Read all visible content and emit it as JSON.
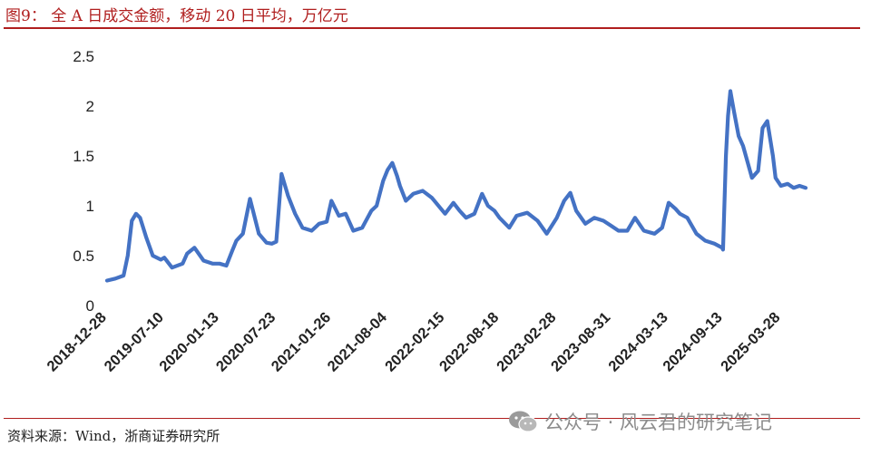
{
  "header": {
    "title": "图9：  全 A 日成交金额，移动 20 日平均，万亿元"
  },
  "footer": {
    "source": "资料来源：Wind，浙商证券研究所"
  },
  "watermark": {
    "text": "公众号 · 风云君的研究笔记",
    "icon": "wechat-icon"
  },
  "colors": {
    "accent": "#b01e1e",
    "line": "#4472c4"
  },
  "chart_data": {
    "type": "line",
    "title": "全 A 日成交金额，移动 20 日平均，万亿元",
    "xlabel": "",
    "ylabel": "",
    "ylim": [
      0,
      2.5
    ],
    "yticks": [
      0,
      0.5,
      1,
      1.5,
      2,
      2.5
    ],
    "grid": false,
    "legend": "none",
    "xticks": [
      "2018-12-28",
      "2019-07-10",
      "2020-01-13",
      "2020-07-23",
      "2021-01-26",
      "2021-08-04",
      "2022-02-15",
      "2022-08-18",
      "2023-02-28",
      "2023-08-31",
      "2024-03-13",
      "2024-09-13",
      "2025-03-28"
    ],
    "series": [
      {
        "name": "",
        "x": [
          "2018-12-28",
          "2019-01-25",
          "2019-02-22",
          "2019-03-08",
          "2019-03-22",
          "2019-04-05",
          "2019-04-19",
          "2019-05-10",
          "2019-06-01",
          "2019-06-28",
          "2019-07-10",
          "2019-08-05",
          "2019-09-10",
          "2019-09-25",
          "2019-10-20",
          "2019-11-20",
          "2019-12-20",
          "2020-01-13",
          "2020-02-05",
          "2020-02-25",
          "2020-03-10",
          "2020-04-01",
          "2020-04-25",
          "2020-05-25",
          "2020-06-20",
          "2020-07-08",
          "2020-07-23",
          "2020-08-10",
          "2020-09-01",
          "2020-09-25",
          "2020-10-20",
          "2020-11-20",
          "2020-12-15",
          "2021-01-10",
          "2021-01-26",
          "2021-02-20",
          "2021-03-15",
          "2021-04-10",
          "2021-05-10",
          "2021-06-10",
          "2021-06-28",
          "2021-07-20",
          "2021-08-04",
          "2021-08-20",
          "2021-09-05",
          "2021-09-15",
          "2021-10-05",
          "2021-10-30",
          "2021-12-01",
          "2022-01-01",
          "2022-02-15",
          "2022-03-15",
          "2022-04-05",
          "2022-04-27",
          "2022-05-25",
          "2022-06-20",
          "2022-07-10",
          "2022-08-01",
          "2022-08-18",
          "2022-09-20",
          "2022-10-15",
          "2022-11-20",
          "2022-12-25",
          "2023-01-25",
          "2023-02-28",
          "2023-03-25",
          "2023-04-15",
          "2023-05-05",
          "2023-06-05",
          "2023-07-05",
          "2023-08-05",
          "2023-08-31",
          "2023-09-25",
          "2023-10-25",
          "2023-11-20",
          "2023-12-20",
          "2024-01-25",
          "2024-02-20",
          "2024-03-13",
          "2024-04-05",
          "2024-04-20",
          "2024-05-15",
          "2024-06-15",
          "2024-07-15",
          "2024-08-15",
          "2024-09-10",
          "2024-09-13",
          "2024-09-23",
          "2024-09-30",
          "2024-10-08",
          "2024-10-20",
          "2024-11-05",
          "2024-11-20",
          "2024-12-20",
          "2025-01-10",
          "2025-01-25",
          "2025-02-10",
          "2025-03-01",
          "2025-03-10",
          "2025-03-28",
          "2025-04-20",
          "2025-05-10",
          "2025-05-30",
          "2025-06-20"
        ],
        "values": [
          0.25,
          0.27,
          0.3,
          0.5,
          0.85,
          0.92,
          0.88,
          0.68,
          0.5,
          0.46,
          0.48,
          0.38,
          0.42,
          0.52,
          0.58,
          0.45,
          0.42,
          0.42,
          0.4,
          0.55,
          0.65,
          0.72,
          1.07,
          0.72,
          0.63,
          0.62,
          0.64,
          1.32,
          1.1,
          0.92,
          0.78,
          0.75,
          0.82,
          0.84,
          1.05,
          0.9,
          0.92,
          0.75,
          0.78,
          0.95,
          1.0,
          1.25,
          1.36,
          1.43,
          1.3,
          1.2,
          1.05,
          1.12,
          1.15,
          1.08,
          0.92,
          1.03,
          0.95,
          0.88,
          0.92,
          1.12,
          1.0,
          0.95,
          0.88,
          0.78,
          0.9,
          0.93,
          0.85,
          0.72,
          0.88,
          1.05,
          1.13,
          0.95,
          0.82,
          0.88,
          0.85,
          0.8,
          0.75,
          0.75,
          0.88,
          0.75,
          0.72,
          0.78,
          1.03,
          0.97,
          0.92,
          0.88,
          0.72,
          0.65,
          0.62,
          0.58,
          0.56,
          1.5,
          1.9,
          2.15,
          1.95,
          1.7,
          1.6,
          1.28,
          1.35,
          1.78,
          1.85,
          1.5,
          1.28,
          1.2,
          1.22,
          1.18,
          1.2,
          1.18
        ]
      }
    ]
  }
}
